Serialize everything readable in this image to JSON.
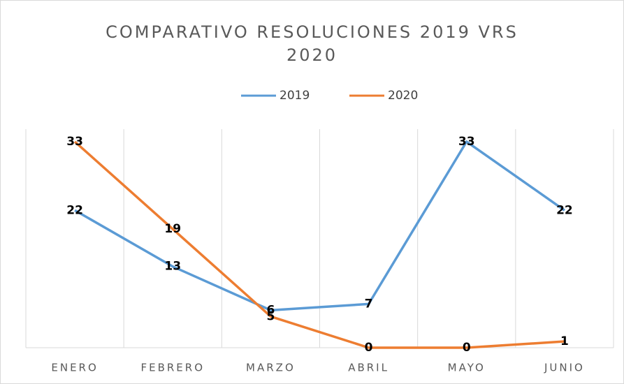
{
  "chart_data": {
    "type": "line",
    "title": "COMPARATIVO RESOLUCIONES 2019 VRS 2020",
    "categories": [
      "ENERO",
      "FEBRERO",
      "MARZO",
      "ABRIL",
      "MAYO",
      "JUNIO"
    ],
    "series": [
      {
        "name": "2019",
        "color": "#5b9bd5",
        "values": [
          22,
          13,
          6,
          7,
          33,
          22
        ]
      },
      {
        "name": "2020",
        "color": "#ed7d31",
        "values": [
          33,
          19,
          5,
          0,
          0,
          1
        ]
      }
    ],
    "ylim": [
      0,
      35
    ],
    "legend": "top",
    "data_labels": true
  }
}
